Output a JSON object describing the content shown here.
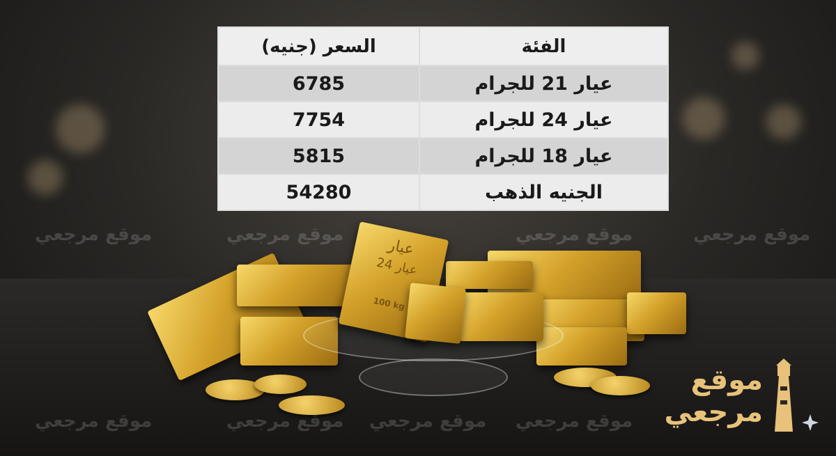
{
  "table": {
    "headers": {
      "category": "الفئة",
      "price": "السعر (جنيه)"
    },
    "rows": [
      {
        "category": "عيار 21 للجرام",
        "price": "6785"
      },
      {
        "category": "عيار 24 للجرام",
        "price": "7754"
      },
      {
        "category": "عيار 18 للجرام",
        "price": "5815"
      },
      {
        "category": "الجنيه الذهب",
        "price": "54280"
      }
    ]
  },
  "watermark": "موقع مرجعي",
  "logo": {
    "line1": "موقع",
    "line2": "مرجعي",
    "icon": "lighthouse-icon",
    "accent": "#e8c27a"
  },
  "bar_engraving": [
    "عيار",
    "عيار 24",
    "100 kg"
  ]
}
